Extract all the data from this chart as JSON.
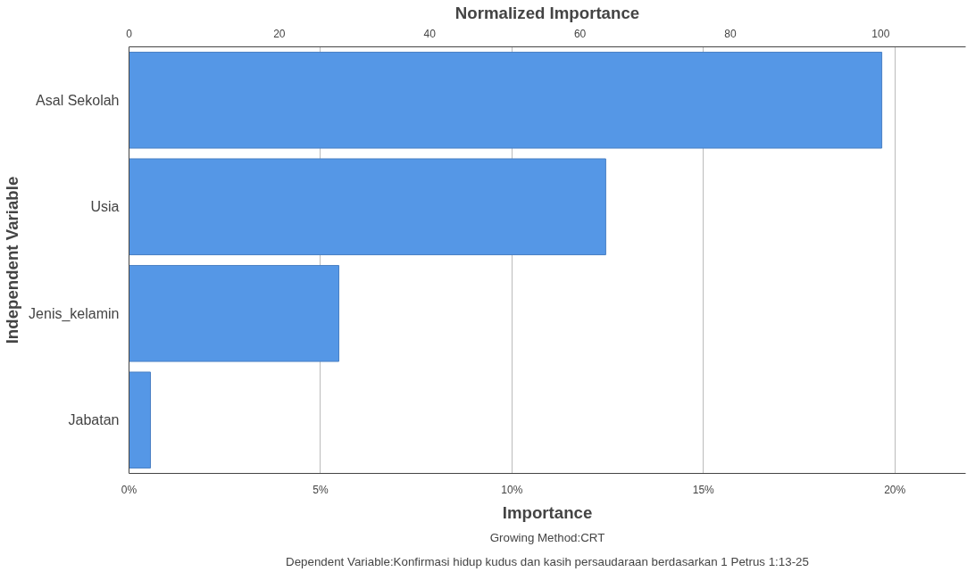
{
  "chart_data": {
    "type": "bar",
    "orientation": "horizontal",
    "categories": [
      "Asal Sekolah",
      "Usia",
      "Jenis_kelamin",
      "Jabatan"
    ],
    "values": [
      19.66,
      12.45,
      5.48,
      0.56
    ],
    "color": "#5597e6",
    "xlabel": "Importance",
    "ylabel": "Independent Variable",
    "x2label": "Normalized Importance",
    "xlim": [
      0,
      21.85
    ],
    "xticks": [
      {
        "value": 0,
        "label": "0%"
      },
      {
        "value": 5,
        "label": "5%"
      },
      {
        "value": 10,
        "label": "10%"
      },
      {
        "value": 15,
        "label": "15%"
      },
      {
        "value": 20,
        "label": "20%"
      }
    ],
    "x2lim": [
      0,
      111.3
    ],
    "x2ticks": [
      0,
      20,
      40,
      60,
      80,
      100
    ],
    "grid": "x",
    "annotations": [
      "Growing Method:CRT",
      "Dependent Variable:Konfirmasi hidup kudus dan kasih persaudaraan berdasarkan 1 Petrus 1:13-25"
    ]
  }
}
